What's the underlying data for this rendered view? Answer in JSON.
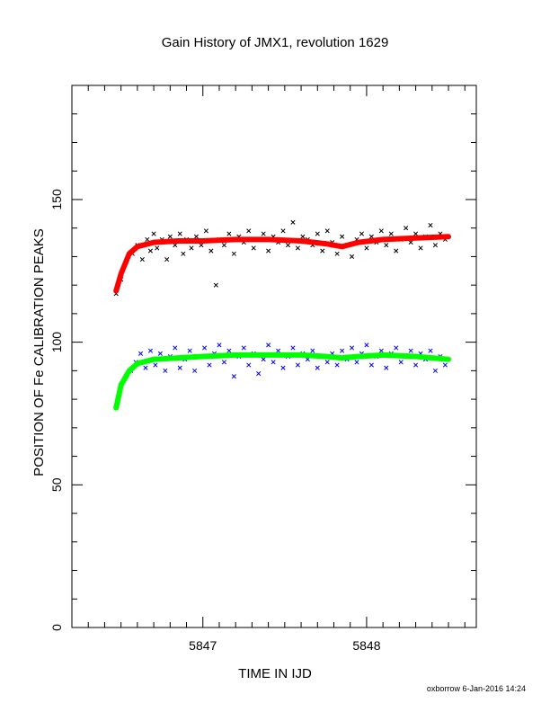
{
  "chart_data": {
    "type": "scatter",
    "title": "Gain History of JMX1, revolution 1629",
    "xlabel": "TIME IN IJD",
    "ylabel": "POSITION OF Fe CALIBRATION PEAKS",
    "xlim": [
      5846.2,
      5848.67
    ],
    "ylim": [
      0,
      190
    ],
    "xticks": [
      5847,
      5848
    ],
    "yticks": [
      0,
      50,
      100,
      150
    ],
    "grid": false,
    "series": [
      {
        "marker": "x",
        "color": "#000000",
        "points": [
          [
            5846.47,
            117
          ],
          [
            5846.5,
            122
          ],
          [
            5846.53,
            128
          ],
          [
            5846.57,
            131
          ],
          [
            5846.6,
            134
          ],
          [
            5846.63,
            129
          ],
          [
            5846.66,
            136
          ],
          [
            5846.68,
            132
          ],
          [
            5846.7,
            138
          ],
          [
            5846.72,
            133
          ],
          [
            5846.75,
            136
          ],
          [
            5846.78,
            129
          ],
          [
            5846.8,
            137
          ],
          [
            5846.83,
            134
          ],
          [
            5846.86,
            138
          ],
          [
            5846.88,
            131
          ],
          [
            5846.9,
            136
          ],
          [
            5846.93,
            133
          ],
          [
            5846.96,
            137
          ],
          [
            5846.99,
            134
          ],
          [
            5847.02,
            139
          ],
          [
            5847.05,
            132
          ],
          [
            5847.08,
            120
          ],
          [
            5847.1,
            136
          ],
          [
            5847.13,
            134
          ],
          [
            5847.16,
            138
          ],
          [
            5847.19,
            131
          ],
          [
            5847.22,
            137
          ],
          [
            5847.25,
            135
          ],
          [
            5847.28,
            139
          ],
          [
            5847.31,
            133
          ],
          [
            5847.34,
            136
          ],
          [
            5847.37,
            138
          ],
          [
            5847.4,
            132
          ],
          [
            5847.43,
            137
          ],
          [
            5847.46,
            135
          ],
          [
            5847.49,
            139
          ],
          [
            5847.52,
            134
          ],
          [
            5847.55,
            142
          ],
          [
            5847.58,
            133
          ],
          [
            5847.61,
            137
          ],
          [
            5847.64,
            136
          ],
          [
            5847.67,
            134
          ],
          [
            5847.7,
            138
          ],
          [
            5847.73,
            132
          ],
          [
            5847.76,
            139
          ],
          [
            5847.79,
            135
          ],
          [
            5847.82,
            131
          ],
          [
            5847.85,
            137
          ],
          [
            5847.88,
            134
          ],
          [
            5847.91,
            130
          ],
          [
            5847.94,
            136
          ],
          [
            5847.97,
            138
          ],
          [
            5848.0,
            133
          ],
          [
            5848.03,
            137
          ],
          [
            5848.06,
            135
          ],
          [
            5848.09,
            139
          ],
          [
            5848.12,
            134
          ],
          [
            5848.15,
            138
          ],
          [
            5848.18,
            132
          ],
          [
            5848.21,
            136
          ],
          [
            5848.24,
            140
          ],
          [
            5848.27,
            135
          ],
          [
            5848.3,
            138
          ],
          [
            5848.33,
            133
          ],
          [
            5848.36,
            137
          ],
          [
            5848.39,
            141
          ],
          [
            5848.42,
            134
          ],
          [
            5848.45,
            138
          ],
          [
            5848.48,
            136
          ]
        ]
      },
      {
        "marker": "line",
        "color": "#ff0000",
        "points": [
          [
            5846.47,
            118
          ],
          [
            5846.5,
            124
          ],
          [
            5846.55,
            131
          ],
          [
            5846.6,
            133.5
          ],
          [
            5846.7,
            135
          ],
          [
            5846.85,
            135.5
          ],
          [
            5847.0,
            135.5
          ],
          [
            5847.2,
            136
          ],
          [
            5847.4,
            136
          ],
          [
            5847.6,
            135.5
          ],
          [
            5847.75,
            134.5
          ],
          [
            5847.85,
            133.5
          ],
          [
            5847.95,
            135
          ],
          [
            5848.1,
            136
          ],
          [
            5848.3,
            136.5
          ],
          [
            5848.5,
            137
          ]
        ]
      },
      {
        "marker": "x",
        "color": "#0000ff",
        "points": [
          [
            5846.5,
            85
          ],
          [
            5846.53,
            88
          ],
          [
            5846.56,
            90
          ],
          [
            5846.59,
            93
          ],
          [
            5846.62,
            96
          ],
          [
            5846.65,
            91
          ],
          [
            5846.68,
            97
          ],
          [
            5846.71,
            92
          ],
          [
            5846.74,
            96
          ],
          [
            5846.77,
            90
          ],
          [
            5846.8,
            95
          ],
          [
            5846.83,
            98
          ],
          [
            5846.86,
            91
          ],
          [
            5846.89,
            94
          ],
          [
            5846.92,
            97
          ],
          [
            5846.95,
            90
          ],
          [
            5846.98,
            95
          ],
          [
            5847.01,
            98
          ],
          [
            5847.04,
            92
          ],
          [
            5847.07,
            96
          ],
          [
            5847.1,
            99
          ],
          [
            5847.13,
            93
          ],
          [
            5847.16,
            97
          ],
          [
            5847.19,
            88
          ],
          [
            5847.22,
            95
          ],
          [
            5847.25,
            98
          ],
          [
            5847.28,
            92
          ],
          [
            5847.31,
            96
          ],
          [
            5847.34,
            89
          ],
          [
            5847.37,
            94
          ],
          [
            5847.4,
            99
          ],
          [
            5847.43,
            93
          ],
          [
            5847.46,
            97
          ],
          [
            5847.49,
            91
          ],
          [
            5847.52,
            95
          ],
          [
            5847.55,
            98
          ],
          [
            5847.58,
            92
          ],
          [
            5847.61,
            96
          ],
          [
            5847.64,
            94
          ],
          [
            5847.67,
            97
          ],
          [
            5847.7,
            91
          ],
          [
            5847.73,
            95
          ],
          [
            5847.76,
            93
          ],
          [
            5847.79,
            96
          ],
          [
            5847.82,
            92
          ],
          [
            5847.85,
            97
          ],
          [
            5847.88,
            94
          ],
          [
            5847.91,
            98
          ],
          [
            5847.94,
            93
          ],
          [
            5847.97,
            96
          ],
          [
            5848.0,
            99
          ],
          [
            5848.03,
            92
          ],
          [
            5848.06,
            95
          ],
          [
            5848.09,
            97
          ],
          [
            5848.12,
            91
          ],
          [
            5848.15,
            96
          ],
          [
            5848.18,
            98
          ],
          [
            5848.21,
            93
          ],
          [
            5848.24,
            95
          ],
          [
            5848.27,
            97
          ],
          [
            5848.3,
            92
          ],
          [
            5848.33,
            96
          ],
          [
            5848.36,
            94
          ],
          [
            5848.39,
            97
          ],
          [
            5848.42,
            90
          ],
          [
            5848.45,
            95
          ],
          [
            5848.48,
            92
          ]
        ]
      },
      {
        "marker": "line",
        "color": "#00ff00",
        "points": [
          [
            5846.47,
            77
          ],
          [
            5846.5,
            85
          ],
          [
            5846.55,
            90
          ],
          [
            5846.6,
            92.5
          ],
          [
            5846.7,
            94
          ],
          [
            5846.85,
            94.5
          ],
          [
            5847.0,
            95
          ],
          [
            5847.2,
            95.5
          ],
          [
            5847.4,
            95.5
          ],
          [
            5847.6,
            95.5
          ],
          [
            5847.75,
            95
          ],
          [
            5847.85,
            94.5
          ],
          [
            5847.95,
            95
          ],
          [
            5848.1,
            95.5
          ],
          [
            5848.3,
            95
          ],
          [
            5848.5,
            94
          ]
        ]
      }
    ]
  },
  "footer": "oxborrow  6-Jan-2016 14:24"
}
